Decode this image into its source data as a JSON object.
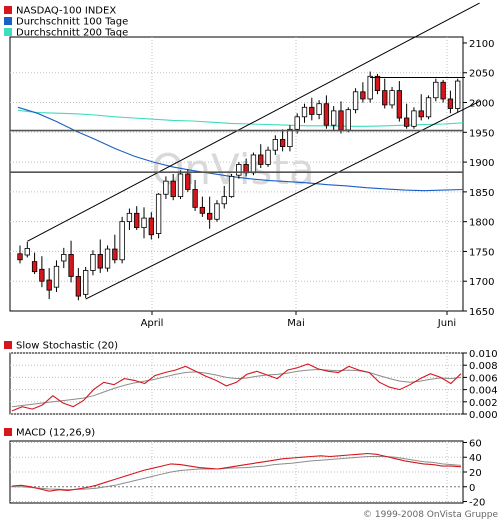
{
  "watermark": "OnVista",
  "copyright": "© 1999-2008 OnVista Gruppe",
  "colors": {
    "index": "#d4171d",
    "ma100": "#1a5fc4",
    "ma200": "#3fdcbf",
    "signal": "#8c8c8c",
    "grid": "#bfbfbf",
    "frame": "#000000",
    "watermark": "#d9d9d9"
  },
  "chart_data": [
    {
      "type": "candlestick",
      "legend": [
        {
          "label": "NASDAQ-100 INDEX",
          "color": "#d4171d"
        },
        {
          "label": "Durchschnitt 100 Tage",
          "color": "#1a5fc4"
        },
        {
          "label": "Durchschnitt 200 Tage",
          "color": "#3fdcbf"
        }
      ],
      "x_ticks": [
        "April",
        "Mai",
        "Juni"
      ],
      "y_ticks": [
        2100,
        2050,
        2000,
        1950,
        1900,
        1850,
        1800,
        1750,
        1700,
        1650
      ],
      "ylim": [
        1650,
        2110
      ],
      "ohlc": [
        [
          1746,
          1760,
          1730,
          1736
        ],
        [
          1744,
          1766,
          1740,
          1755
        ],
        [
          1733,
          1748,
          1712,
          1716
        ],
        [
          1720,
          1742,
          1690,
          1700
        ],
        [
          1702,
          1722,
          1670,
          1685
        ],
        [
          1690,
          1735,
          1682,
          1725
        ],
        [
          1734,
          1756,
          1722,
          1745
        ],
        [
          1745,
          1768,
          1698,
          1708
        ],
        [
          1708,
          1722,
          1668,
          1675
        ],
        [
          1678,
          1724,
          1672,
          1718
        ],
        [
          1718,
          1752,
          1710,
          1745
        ],
        [
          1745,
          1770,
          1714,
          1722
        ],
        [
          1722,
          1760,
          1716,
          1754
        ],
        [
          1754,
          1778,
          1730,
          1736
        ],
        [
          1736,
          1808,
          1730,
          1800
        ],
        [
          1800,
          1822,
          1786,
          1814
        ],
        [
          1814,
          1826,
          1786,
          1790
        ],
        [
          1790,
          1824,
          1772,
          1806
        ],
        [
          1806,
          1816,
          1770,
          1778
        ],
        [
          1780,
          1848,
          1772,
          1846
        ],
        [
          1846,
          1876,
          1838,
          1868
        ],
        [
          1868,
          1880,
          1836,
          1842
        ],
        [
          1842,
          1886,
          1838,
          1880
        ],
        [
          1880,
          1888,
          1850,
          1854
        ],
        [
          1854,
          1870,
          1818,
          1824
        ],
        [
          1824,
          1842,
          1808,
          1814
        ],
        [
          1814,
          1842,
          1788,
          1804
        ],
        [
          1804,
          1836,
          1800,
          1830
        ],
        [
          1830,
          1860,
          1822,
          1842
        ],
        [
          1842,
          1880,
          1840,
          1876
        ],
        [
          1878,
          1900,
          1872,
          1896
        ],
        [
          1896,
          1906,
          1876,
          1882
        ],
        [
          1882,
          1916,
          1878,
          1912
        ],
        [
          1912,
          1930,
          1890,
          1896
        ],
        [
          1896,
          1926,
          1892,
          1920
        ],
        [
          1920,
          1945,
          1912,
          1938
        ],
        [
          1938,
          1955,
          1918,
          1926
        ],
        [
          1926,
          1962,
          1918,
          1955
        ],
        [
          1955,
          1982,
          1948,
          1976
        ],
        [
          1976,
          1998,
          1966,
          1992
        ],
        [
          1992,
          2008,
          1970,
          1980
        ],
        [
          1980,
          2004,
          1972,
          1998
        ],
        [
          1998,
          2012,
          1956,
          1962
        ],
        [
          1962,
          1994,
          1952,
          1986
        ],
        [
          1986,
          2002,
          1948,
          1954
        ],
        [
          1954,
          1992,
          1950,
          1988
        ],
        [
          1988,
          2024,
          1982,
          2018
        ],
        [
          2018,
          2034,
          2000,
          2006
        ],
        [
          2006,
          2052,
          2000,
          2044
        ],
        [
          2044,
          2048,
          2014,
          2020
        ],
        [
          2020,
          2040,
          1990,
          1996
        ],
        [
          1996,
          2026,
          1990,
          2020
        ],
        [
          2020,
          2036,
          1968,
          1974
        ],
        [
          1974,
          1998,
          1956,
          1960
        ],
        [
          1960,
          1992,
          1956,
          1986
        ],
        [
          1986,
          2014,
          1970,
          1976
        ],
        [
          1976,
          2012,
          1972,
          2008
        ],
        [
          2008,
          2040,
          2002,
          2034
        ],
        [
          2034,
          2038,
          2000,
          2006
        ],
        [
          2006,
          2020,
          1982,
          1990
        ],
        [
          1990,
          2040,
          1984,
          2036
        ]
      ],
      "ma100": [
        1992,
        1982,
        1968,
        1952,
        1938,
        1923,
        1910,
        1900,
        1892,
        1886,
        1881,
        1876,
        1872,
        1869,
        1867,
        1865,
        1862,
        1860,
        1857,
        1855,
        1853,
        1852,
        1853,
        1854
      ],
      "ma200": [
        1987,
        1983,
        1982,
        1981,
        1979,
        1976,
        1974,
        1972,
        1970,
        1969,
        1967,
        1965,
        1964,
        1963,
        1962,
        1961,
        1961,
        1960,
        1960,
        1961,
        1962,
        1963,
        1964,
        1966
      ],
      "trendlines": [
        {
          "name": "channel-upper",
          "from": [
            1,
            1767
          ],
          "to": [
            63,
            2167
          ]
        },
        {
          "name": "channel-lower",
          "from": [
            9,
            1670
          ],
          "to": [
            63,
            2002
          ]
        },
        {
          "name": "resistance",
          "from": [
            48,
            2042
          ],
          "to": [
            61,
            2042
          ]
        }
      ],
      "hlines": [
        1953,
        1883
      ]
    },
    {
      "type": "line",
      "legend": [
        {
          "label": "Slow Stochastic (20)",
          "color": "#d4171d"
        }
      ],
      "y_ticks": [
        "0.010",
        "0.008",
        "0.006",
        "0.004",
        "0.002",
        "0.000"
      ],
      "ylim": [
        0,
        0.01
      ],
      "series": [
        {
          "values": [
            0.0005,
            0.0012,
            0.0008,
            0.0015,
            0.003,
            0.0018,
            0.0012,
            0.0022,
            0.004,
            0.0052,
            0.0048,
            0.0058,
            0.0055,
            0.005,
            0.0063,
            0.0068,
            0.0072,
            0.0078,
            0.007,
            0.0062,
            0.0055,
            0.0046,
            0.0052,
            0.0065,
            0.007,
            0.0064,
            0.0058,
            0.0072,
            0.0076,
            0.0082,
            0.0074,
            0.007,
            0.0068,
            0.0078,
            0.0072,
            0.0068,
            0.0052,
            0.0044,
            0.004,
            0.0048,
            0.0058,
            0.0066,
            0.006,
            0.005,
            0.0066
          ]
        },
        {
          "values": [
            0.0012,
            0.0014,
            0.0016,
            0.0018,
            0.002,
            0.0022,
            0.0024,
            0.0026,
            0.003,
            0.0036,
            0.0042,
            0.0047,
            0.0051,
            0.0054,
            0.0057,
            0.0061,
            0.0065,
            0.0068,
            0.0069,
            0.0067,
            0.0064,
            0.006,
            0.0058,
            0.0059,
            0.0062,
            0.0064,
            0.0065,
            0.0067,
            0.007,
            0.0072,
            0.0073,
            0.0072,
            0.0071,
            0.0072,
            0.0071,
            0.0068,
            0.0063,
            0.0058,
            0.0054,
            0.0052,
            0.0054,
            0.0057,
            0.0059,
            0.0058,
            0.006
          ]
        }
      ]
    },
    {
      "type": "line",
      "legend": [
        {
          "label": "MACD (12,26,9)",
          "color": "#d4171d"
        }
      ],
      "y_ticks": [
        60,
        40,
        20,
        0,
        -20
      ],
      "ylim": [
        -22,
        62
      ],
      "series": [
        {
          "values": [
            1,
            2,
            0,
            -3,
            -6,
            -4,
            -5,
            -3,
            -1,
            2,
            6,
            10,
            14,
            18,
            22,
            25,
            28,
            31,
            30,
            28,
            26,
            25,
            24,
            26,
            28,
            30,
            32,
            34,
            36,
            38,
            39,
            40,
            41,
            42,
            41,
            42,
            43,
            44,
            45,
            44,
            41,
            38,
            35,
            33,
            31,
            30,
            28,
            28,
            27
          ]
        },
        {
          "values": [
            0,
            0,
            -1,
            -2,
            -3,
            -3.5,
            -3.8,
            -3.6,
            -3,
            -2,
            0,
            2,
            5,
            8,
            11,
            14,
            17,
            20,
            22,
            23,
            24,
            24,
            24,
            25,
            25.5,
            26,
            27,
            28,
            30,
            31,
            32,
            33.5,
            35,
            36,
            37,
            38,
            39,
            40,
            41,
            41,
            41,
            40,
            38,
            36,
            34,
            33,
            31,
            30,
            29
          ]
        }
      ]
    }
  ]
}
